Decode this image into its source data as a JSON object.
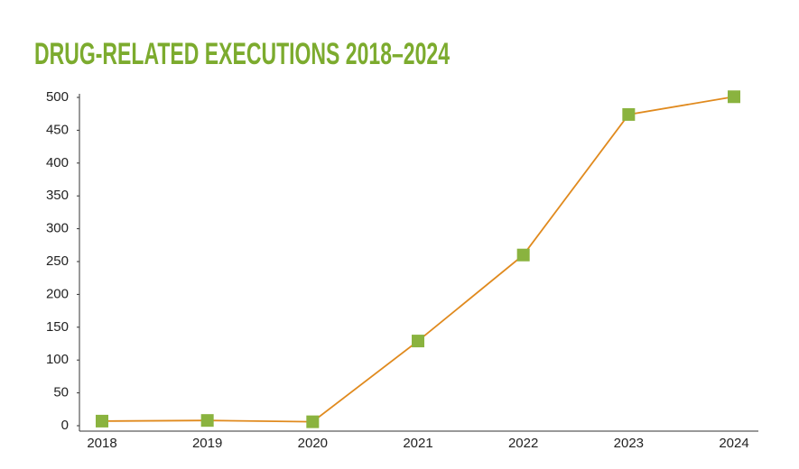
{
  "chart_data": {
    "type": "line",
    "title": "DRUG-RELATED EXECUTIONS 2018–2024",
    "x": [
      2018,
      2019,
      2020,
      2021,
      2022,
      2023,
      2024
    ],
    "series": [
      {
        "name": "Drug-related executions",
        "color": "#e08a1e",
        "marker_color": "#8ab33f",
        "values": [
          7,
          8,
          6,
          129,
          260,
          474,
          501
        ]
      }
    ],
    "xlim": [
      2018,
      2024
    ],
    "ylim": [
      0,
      500
    ],
    "yticks": [
      0,
      50,
      100,
      150,
      200,
      250,
      300,
      350,
      400,
      450,
      500
    ],
    "title_color": "#7cab2e"
  }
}
